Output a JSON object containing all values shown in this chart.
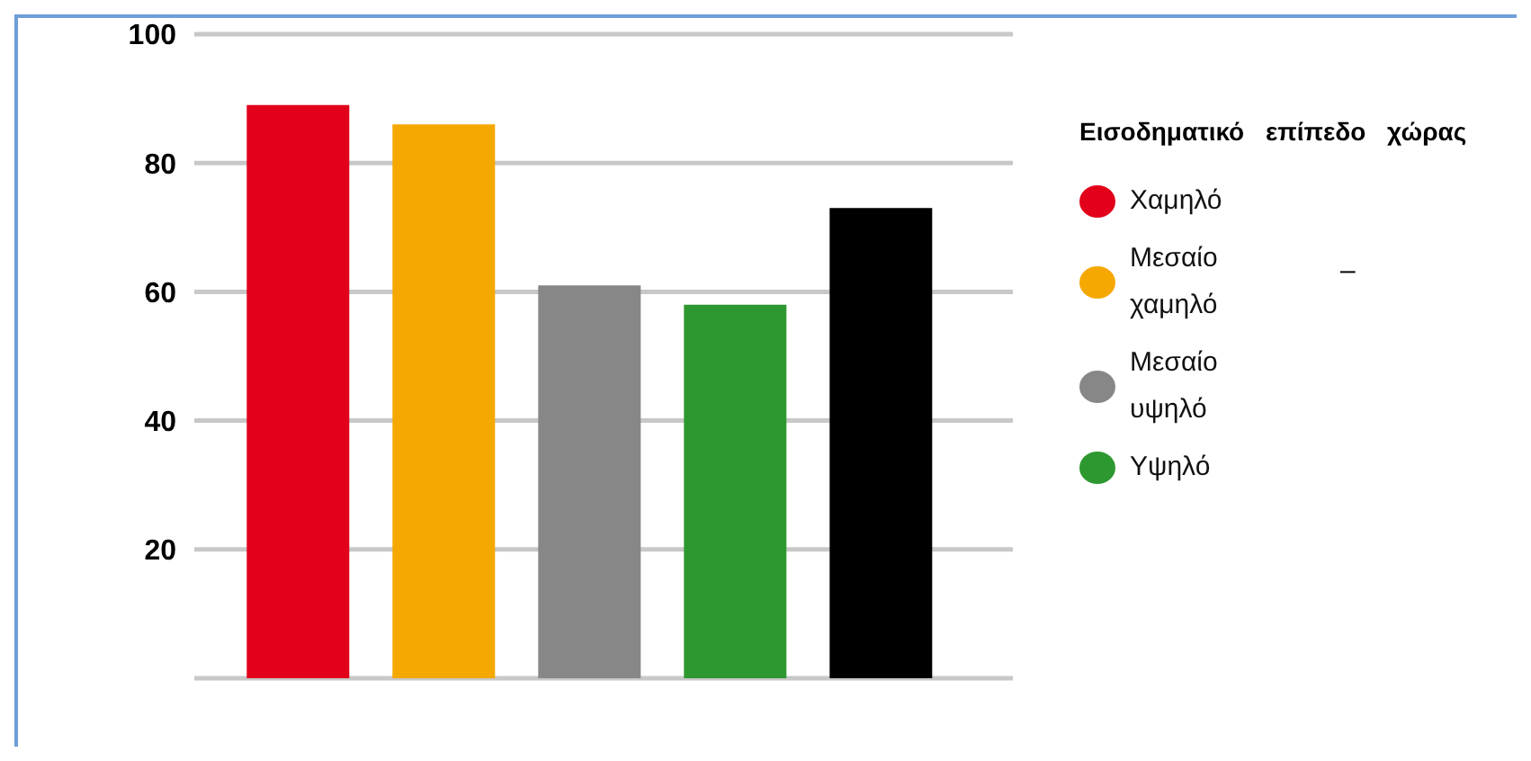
{
  "chart_data": {
    "type": "bar",
    "categories": [
      null,
      null,
      null,
      null,
      null
    ],
    "legend_title": "Εισοδηματικό επίπεδο χώρας",
    "series": [
      {
        "name": "Χαμηλό",
        "color": "#e2001a",
        "values": [
          89,
          null,
          null,
          null,
          null
        ]
      },
      {
        "name": "Μεσαίο χαμηλό",
        "color": "#f5a800",
        "values": [
          null,
          86,
          null,
          null,
          null
        ]
      },
      {
        "name": "Μεσαίο υψηλό",
        "color": "#878787",
        "values": [
          null,
          null,
          61,
          null,
          null
        ]
      },
      {
        "name": "Υψηλό",
        "color": "#2e9830",
        "values": [
          null,
          null,
          null,
          58,
          null
        ]
      },
      {
        "color": "#000000",
        "values": [
          null,
          null,
          null,
          null,
          73
        ]
      }
    ],
    "ylim": [
      0,
      100
    ],
    "yticks": [
      {
        "value": 0,
        "label": null
      },
      20,
      40,
      60,
      80,
      100
    ],
    "grid": "y",
    "legend": "right",
    "annotations": [
      "–"
    ]
  }
}
